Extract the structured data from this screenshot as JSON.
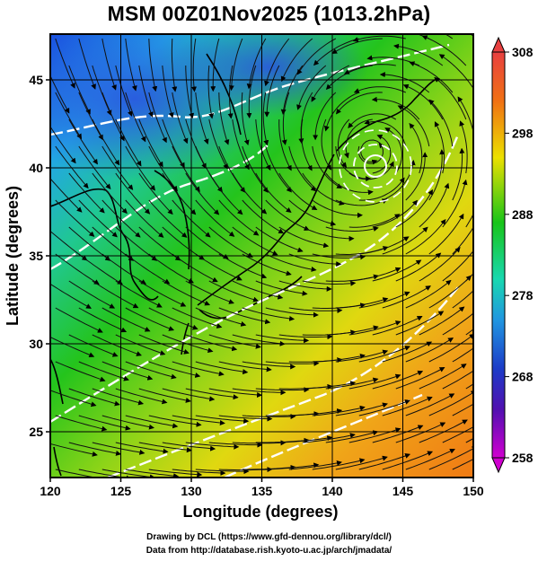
{
  "title": "MSM 00Z01Nov2025 (1013.2hPa)",
  "map": {
    "xlabel": "Longitude (degrees)",
    "ylabel": "Latitude  (degrees)",
    "lon_range": [
      120,
      150
    ],
    "lat_range": [
      22.4,
      47.6
    ],
    "lon_ticks": [
      120,
      125,
      130,
      135,
      140,
      145,
      150
    ],
    "lat_ticks": [
      25,
      30,
      35,
      40,
      45
    ],
    "field": "temperature (K) with streamlines",
    "cyclone_center": {
      "lon": 142.8,
      "lat": 40.9
    }
  },
  "colorbar": {
    "range": [
      258,
      308
    ],
    "ticks": [
      258,
      268,
      278,
      288,
      298,
      308
    ],
    "colors": {
      "min": "#d000d0",
      "cold": "#1c3cc8",
      "mid": "#18c418",
      "warm": "#ece000",
      "hot": "#f07014",
      "max": "#e84040"
    }
  },
  "footer": {
    "line1": "Drawing by DCL (https://www.gfd-dennou.org/library/dcl/)",
    "line2": "Data from http://database.rish.kyoto-u.ac.jp/arch/jmadata/"
  }
}
